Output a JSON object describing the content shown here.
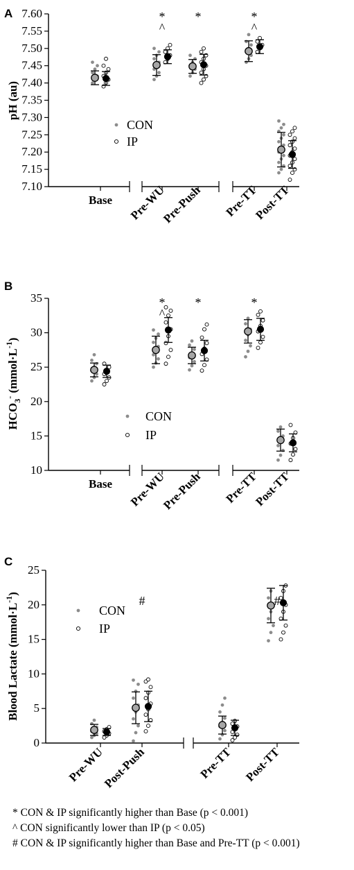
{
  "chart_data": [
    {
      "panel": "A",
      "type": "scatter",
      "ylabel": "pH (au)",
      "ylim": [
        7.1,
        7.6
      ],
      "yticks": [
        "7.10",
        "7.15",
        "7.20",
        "7.25",
        "7.30",
        "7.35",
        "7.40",
        "7.45",
        "7.50",
        "7.55",
        "7.60"
      ],
      "categories": [
        "Base",
        "Pre-WU",
        "Pre-Push",
        "Pre-TT",
        "Post-TT"
      ],
      "legend": {
        "placement": "center-left",
        "entries": [
          "CON",
          "IP"
        ]
      },
      "series": [
        {
          "name": "CON",
          "mean": [
            7.415,
            7.452,
            7.448,
            7.492,
            7.207
          ],
          "sd": [
            0.02,
            0.03,
            0.02,
            0.03,
            0.05
          ],
          "points": [
            [
              7.4,
              7.41,
              7.42,
              7.43,
              7.44,
              7.45,
              7.46
            ],
            [
              7.41,
              7.42,
              7.43,
              7.44,
              7.45,
              7.46,
              7.47,
              7.48,
              7.49,
              7.5
            ],
            [
              7.42,
              7.43,
              7.44,
              7.45,
              7.46,
              7.47,
              7.48
            ],
            [
              7.46,
              7.47,
              7.48,
              7.49,
              7.5,
              7.51,
              7.52,
              7.54
            ],
            [
              7.14,
              7.15,
              7.16,
              7.17,
              7.18,
              7.19,
              7.2,
              7.21,
              7.22,
              7.23,
              7.24,
              7.25,
              7.26,
              7.27,
              7.28,
              7.29
            ]
          ]
        },
        {
          "name": "IP",
          "mean": [
            7.413,
            7.476,
            7.453,
            7.505,
            7.193
          ],
          "sd": [
            0.02,
            0.02,
            0.03,
            0.02,
            0.04
          ],
          "points": [
            [
              7.39,
              7.4,
              7.41,
              7.42,
              7.43,
              7.44,
              7.45,
              7.47
            ],
            [
              7.46,
              7.47,
              7.48,
              7.49,
              7.5,
              7.51
            ],
            [
              7.4,
              7.41,
              7.42,
              7.43,
              7.44,
              7.45,
              7.46,
              7.47,
              7.48,
              7.49,
              7.5
            ],
            [
              7.49,
              7.5,
              7.51,
              7.52,
              7.53
            ],
            [
              7.12,
              7.14,
              7.15,
              7.16,
              7.17,
              7.18,
              7.19,
              7.2,
              7.21,
              7.22,
              7.23,
              7.24,
              7.25,
              7.26,
              7.27
            ]
          ]
        }
      ],
      "annotations": [
        {
          "category": "Pre-WU",
          "text": [
            "*",
            "^"
          ]
        },
        {
          "category": "Pre-Push",
          "text": [
            "*"
          ]
        },
        {
          "category": "Pre-TT",
          "text": [
            "*",
            "^"
          ]
        }
      ]
    },
    {
      "panel": "B",
      "type": "scatter",
      "ylabel": "HCO3- (mmol·L-1)",
      "ylim": [
        10,
        35
      ],
      "yticks": [
        "10",
        "15",
        "20",
        "25",
        "30",
        "35"
      ],
      "categories": [
        "Base",
        "Pre-WU",
        "Pre-Push",
        "Pre-TT",
        "Post-TT"
      ],
      "legend": {
        "placement": "center-left",
        "entries": [
          "CON",
          "IP"
        ]
      },
      "series": [
        {
          "name": "CON",
          "mean": [
            24.6,
            27.5,
            26.7,
            30.2,
            14.4
          ],
          "sd": [
            1.0,
            2.0,
            1.2,
            1.7,
            1.6
          ],
          "points": [
            [
              23.0,
              23.5,
              24.0,
              24.5,
              25.0,
              25.5,
              26.0,
              26.8
            ],
            [
              25.0,
              25.6,
              26.2,
              26.8,
              27.4,
              28.0,
              28.6,
              29.2,
              29.8,
              30.4
            ],
            [
              24.6,
              25.2,
              25.8,
              26.4,
              27.0,
              27.6,
              28.2,
              28.8
            ],
            [
              26.5,
              27.3,
              28.1,
              28.9,
              29.7,
              30.5,
              31.3,
              32.1
            ],
            [
              11.5,
              12.2,
              12.9,
              13.6,
              14.3,
              15.0,
              15.7,
              16.3
            ]
          ]
        },
        {
          "name": "IP",
          "mean": [
            24.4,
            30.4,
            27.4,
            30.5,
            14.0
          ],
          "sd": [
            0.9,
            1.8,
            1.5,
            1.6,
            1.3
          ],
          "points": [
            [
              22.5,
              23.0,
              23.5,
              24.0,
              24.5,
              25.0,
              25.5
            ],
            [
              25.5,
              26.5,
              27.5,
              28.5,
              29.5,
              30.5,
              31.5,
              32.5,
              33.2,
              33.7
            ],
            [
              24.5,
              25.3,
              26.1,
              26.9,
              27.7,
              28.5,
              29.3,
              30.5,
              31.2
            ],
            [
              27.8,
              28.6,
              29.4,
              30.2,
              31.0,
              31.8,
              32.6,
              33.1
            ],
            [
              11.5,
              12.3,
              13.1,
              13.9,
              14.7,
              15.5,
              16.6
            ]
          ]
        }
      ],
      "annotations": [
        {
          "category": "Pre-WU",
          "text": [
            "*",
            "^"
          ]
        },
        {
          "category": "Pre-Push",
          "text": [
            "*"
          ]
        },
        {
          "category": "Pre-TT",
          "text": [
            "*"
          ]
        }
      ]
    },
    {
      "panel": "C",
      "type": "scatter",
      "ylabel": "Blood Lactate (mmol·L-1)",
      "ylim": [
        0,
        25
      ],
      "yticks": [
        "0",
        "5",
        "10",
        "15",
        "20",
        "25"
      ],
      "categories": [
        "Pre-WU",
        "Post-Push",
        "Pre-TT",
        "Post-TT"
      ],
      "legend": {
        "placement": "upper-left",
        "entries": [
          "CON",
          "IP"
        ]
      },
      "series": [
        {
          "name": "CON",
          "mean": [
            1.9,
            5.1,
            2.6,
            19.9
          ],
          "sd": [
            0.8,
            2.3,
            1.3,
            2.5
          ],
          "points": [
            [
              0.8,
              1.1,
              1.4,
              1.7,
              2.0,
              2.3,
              2.8,
              3.3
            ],
            [
              0.3,
              1.5,
              2.5,
              3.5,
              4.5,
              5.5,
              6.5,
              7.5,
              8.5,
              9.1
            ],
            [
              0.6,
              1.2,
              1.8,
              2.4,
              3.0,
              3.6,
              4.5,
              5.5,
              6.5
            ],
            [
              14.8,
              16.0,
              17.0,
              18.0,
              19.0,
              20.0,
              21.0,
              22.0
            ]
          ]
        },
        {
          "name": "IP",
          "mean": [
            1.6,
            5.3,
            2.2,
            20.3
          ],
          "sd": [
            0.5,
            2.2,
            1.1,
            2.5
          ],
          "points": [
            [
              0.8,
              1.1,
              1.4,
              1.7,
              2.0,
              2.3
            ],
            [
              1.7,
              2.5,
              3.3,
              4.1,
              4.9,
              5.7,
              6.5,
              7.3,
              8.1,
              8.9,
              9.2
            ],
            [
              0.4,
              0.8,
              1.2,
              1.6,
              2.0,
              2.4,
              2.8,
              3.2
            ],
            [
              15.0,
              16.0,
              17.0,
              18.0,
              19.0,
              20.0,
              21.0,
              22.0,
              22.8
            ]
          ]
        }
      ],
      "annotations": [
        {
          "category": "Post-Push",
          "text": [
            "#"
          ]
        },
        {
          "category": "Post-TT",
          "text": [
            "#"
          ]
        }
      ]
    }
  ],
  "footnotes": [
    "* CON & IP significantly higher than Base (p < 0.001)",
    "^ CON significantly lower than IP (p < 0.05)",
    "# CON & IP significantly higher than Base and Pre-TT (p < 0.001)"
  ],
  "colors": {
    "con_marker": "#8c8c8c",
    "con_mean_fill": "#a6a6a6",
    "ip_marker_stroke": "#000000",
    "ip_mean_fill": "#000000",
    "axis": "#000000"
  }
}
